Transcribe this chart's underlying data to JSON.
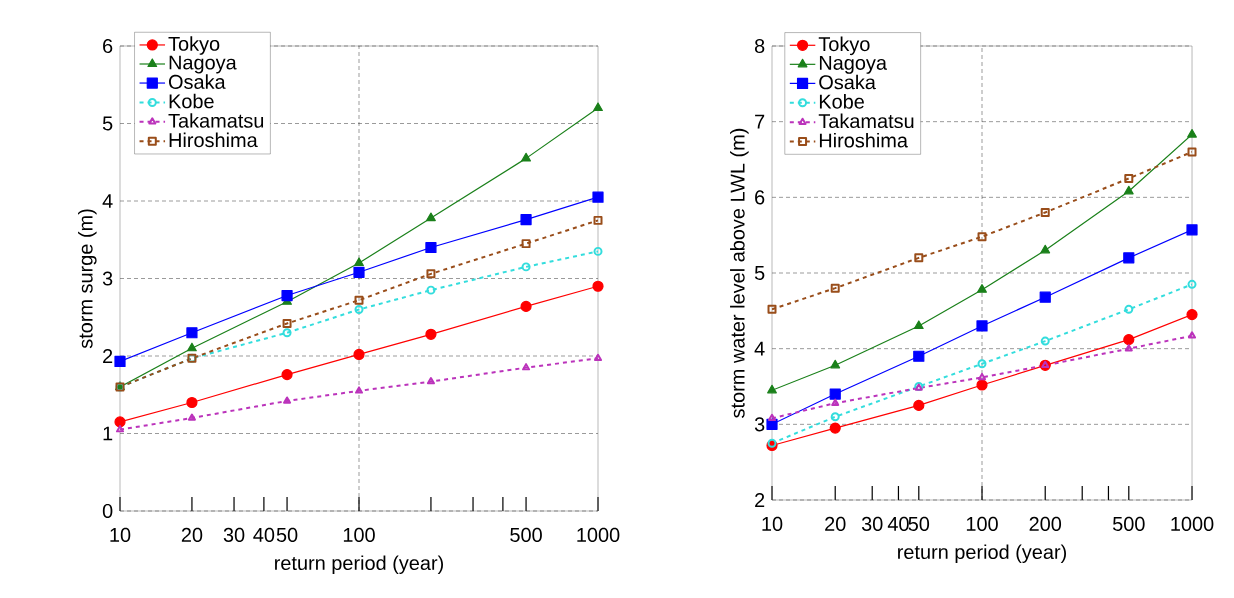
{
  "chart_data": [
    {
      "type": "line",
      "xlabel": "return period (year)",
      "ylabel": "storm surge (m)",
      "log": "x",
      "grid": "y",
      "legend": "top left",
      "xlim": [
        10,
        1000
      ],
      "ylim": [
        0,
        6
      ],
      "yticks": [
        0,
        1,
        2,
        3,
        4,
        5,
        6
      ],
      "xticks": [
        10,
        20,
        30,
        40,
        50,
        100,
        {
          "value": 200,
          "label": null
        },
        {
          "value": 300,
          "label": null
        },
        {
          "value": 400,
          "label": null
        },
        500,
        1000
      ],
      "ref_lines": [
        {
          "axis": "x",
          "value": 100
        }
      ],
      "x": [
        10,
        20,
        50,
        100,
        200,
        500,
        1000
      ],
      "series": [
        {
          "name": "Tokyo",
          "color": "#ff0000",
          "marker": "circle",
          "line_style": "solid",
          "values": [
            1.15,
            1.4,
            1.76,
            2.02,
            2.28,
            2.64,
            2.9
          ]
        },
        {
          "name": "Nagoya",
          "color": "#1a801a",
          "marker": "triangle",
          "line_style": "solid",
          "values": [
            1.6,
            2.1,
            2.7,
            3.2,
            3.78,
            4.55,
            5.2
          ]
        },
        {
          "name": "Osaka",
          "color": "#0000ff",
          "marker": "square",
          "line_style": "solid",
          "values": [
            1.93,
            2.3,
            2.78,
            3.08,
            3.4,
            3.76,
            4.05
          ]
        },
        {
          "name": "Kobe",
          "color": "#33dddd",
          "marker": "circle",
          "line_style": "dotted",
          "values": [
            1.6,
            1.97,
            2.3,
            2.6,
            2.85,
            3.15,
            3.35
          ]
        },
        {
          "name": "Takamatsu",
          "color": "#bb33bb",
          "marker": "triangle",
          "line_style": "dotted",
          "values": [
            1.05,
            1.2,
            1.42,
            1.55,
            1.67,
            1.85,
            1.97
          ]
        },
        {
          "name": "Hiroshima",
          "color": "#994d1a",
          "marker": "square",
          "line_style": "dotted",
          "values": [
            1.6,
            1.97,
            2.42,
            2.72,
            3.06,
            3.45,
            3.75
          ]
        }
      ]
    },
    {
      "type": "line",
      "xlabel": "return period (year)",
      "ylabel": "storm water level above LWL (m)",
      "log": "x",
      "grid": "y",
      "legend": "top left",
      "xlim": [
        10,
        1000
      ],
      "ylim": [
        2,
        8
      ],
      "yticks": [
        2,
        3,
        4,
        5,
        6,
        7,
        8
      ],
      "xticks": [
        10,
        20,
        30,
        40,
        50,
        100,
        200,
        {
          "value": 300,
          "label": null
        },
        {
          "value": 400,
          "label": null
        },
        500,
        1000
      ],
      "ref_lines": [
        {
          "axis": "x",
          "value": 100
        }
      ],
      "x": [
        10,
        20,
        50,
        100,
        200,
        500,
        1000
      ],
      "series": [
        {
          "name": "Tokyo",
          "color": "#ff0000",
          "marker": "circle",
          "line_style": "solid",
          "values": [
            2.72,
            2.95,
            3.25,
            3.52,
            3.78,
            4.12,
            4.45
          ]
        },
        {
          "name": "Nagoya",
          "color": "#1a801a",
          "marker": "triangle",
          "line_style": "solid",
          "values": [
            3.45,
            3.78,
            4.3,
            4.78,
            5.3,
            6.08,
            6.83
          ]
        },
        {
          "name": "Osaka",
          "color": "#0000ff",
          "marker": "square",
          "line_style": "solid",
          "values": [
            3.0,
            3.4,
            3.9,
            4.3,
            4.68,
            5.2,
            5.57
          ]
        },
        {
          "name": "Kobe",
          "color": "#33dddd",
          "marker": "circle",
          "line_style": "dotted",
          "values": [
            2.75,
            3.1,
            3.5,
            3.8,
            4.1,
            4.52,
            4.85
          ]
        },
        {
          "name": "Takamatsu",
          "color": "#bb33bb",
          "marker": "triangle",
          "line_style": "dotted",
          "values": [
            3.08,
            3.28,
            3.48,
            3.62,
            3.78,
            4.0,
            4.17
          ]
        },
        {
          "name": "Hiroshima",
          "color": "#994d1a",
          "marker": "square",
          "line_style": "dotted",
          "values": [
            4.52,
            4.8,
            5.2,
            5.48,
            5.8,
            6.25,
            6.6
          ]
        }
      ]
    }
  ]
}
